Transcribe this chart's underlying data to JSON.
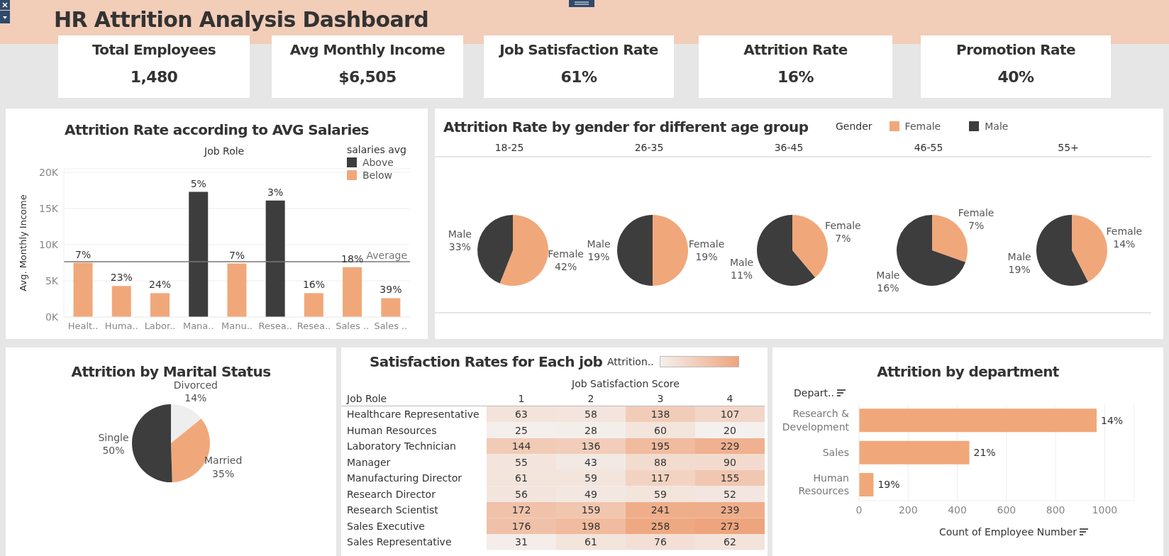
{
  "chart_data": [
    {
      "type": "other",
      "title": "HR Attrition Analysis Dashboard",
      "annotations": [
        "Total Employees",
        "1,480",
        "Avg Monthly Income",
        "$6,505",
        "Job Satisfaction Rate",
        "61%",
        "Attrition Rate",
        "16%",
        "Promotion Rate",
        "40%"
      ]
    },
    {
      "type": "bar",
      "title": "Attrition Rate according to AVG Salaries",
      "xlabel": "Job Role",
      "ylabel": "Avg. Monthly Income",
      "legend_title": "salaries avg",
      "legend": "top right",
      "stacked": true,
      "grid": "y",
      "categories": [
        "Healt..",
        "Huma..",
        "Labor..",
        "Mana..",
        "Manu..",
        "Resea..",
        "Resea..",
        "Sales ..",
        "Sales .."
      ],
      "series": [
        {
          "name": "Above",
          "color": "#3d3d3d",
          "values": [
            null,
            null,
            null,
            17300,
            null,
            16100,
            null,
            null,
            null
          ]
        },
        {
          "name": "Below",
          "color": "#f0a87a",
          "values": [
            7500,
            4300,
            3300,
            null,
            7400,
            null,
            3300,
            6900,
            2600
          ]
        }
      ],
      "annotations": [
        {
          "text": "7%",
          "y": 7500
        },
        {
          "text": "23%",
          "y": 4300
        },
        {
          "text": "24%",
          "y": 3300
        },
        {
          "text": "5%",
          "y": 17300
        },
        {
          "text": "7%",
          "y": 7400
        },
        {
          "text": "3%",
          "y": 16100
        },
        {
          "text": "16%",
          "y": 3300
        },
        {
          "text": "18%",
          "y": 6900
        },
        {
          "text": "39%",
          "y": 2600
        }
      ],
      "ylim": [
        0,
        20500
      ],
      "yticks": [
        {
          "value": 0,
          "label": "0K"
        },
        {
          "value": 5000,
          "label": "5K"
        },
        {
          "value": 10000,
          "label": "10K"
        },
        {
          "value": 15000,
          "label": "15K"
        },
        {
          "value": 20000,
          "label": "20K"
        }
      ],
      "ref_lines": [
        {
          "axis": "y",
          "value": 7650,
          "label": "Average",
          "color": "#777777"
        }
      ]
    },
    {
      "type": "pie",
      "title": "Attrition Rate by gender for different age group",
      "legend_title": "Gender",
      "legend": "top right",
      "categories": [
        "Female",
        "Male"
      ],
      "colors": [
        "#f0a87a",
        "#3d3d3d"
      ],
      "series": [
        {
          "name": "18-25",
          "values": [
            42,
            33
          ],
          "value_labels": [
            "42%",
            "33%"
          ]
        },
        {
          "name": "26-35",
          "values": [
            19,
            19
          ],
          "value_labels": [
            "19%",
            "19%"
          ]
        },
        {
          "name": "36-45",
          "values": [
            7,
            11
          ],
          "value_labels": [
            "7%",
            "11%"
          ]
        },
        {
          "name": "46-55",
          "values": [
            7,
            16
          ],
          "value_labels": [
            "7%",
            "16%"
          ]
        },
        {
          "name": "55+",
          "values": [
            14,
            19
          ],
          "value_labels": [
            "14%",
            "19%"
          ]
        }
      ]
    },
    {
      "type": "pie",
      "title": "Attrition by Marital Status",
      "categories": [
        "Divorced",
        "Married",
        "Single"
      ],
      "values": [
        14,
        35,
        50
      ],
      "value_labels": [
        "14%",
        "35%",
        "50%"
      ],
      "colors": [
        "#eeeeee",
        "#f0a87a",
        "#3d3d3d"
      ]
    },
    {
      "type": "heatmap",
      "data_labels": true,
      "title": "Satisfaction Rates for Each job",
      "xlabel": "Job Satisfaction Score",
      "ylabel": "Job Role",
      "clabel": "Attrition..",
      "colors": [
        "#f4f0ee",
        "#eea47c"
      ],
      "categories": [
        "1",
        "2",
        "3",
        "4"
      ],
      "y_categories": [
        "Healthcare Representative",
        "Human Resources",
        "Laboratory Technician",
        "Manager",
        "Manufacturing Director",
        "Research Director",
        "Research Scientist",
        "Sales Executive",
        "Sales Representative"
      ],
      "cells": [
        [
          63,
          58,
          138,
          107
        ],
        [
          25,
          28,
          60,
          20
        ],
        [
          144,
          136,
          195,
          229
        ],
        [
          55,
          43,
          88,
          90
        ],
        [
          61,
          59,
          117,
          155
        ],
        [
          56,
          49,
          59,
          52
        ],
        [
          172,
          159,
          241,
          239
        ],
        [
          176,
          198,
          258,
          273
        ],
        [
          31,
          61,
          76,
          62
        ]
      ]
    },
    {
      "type": "bar",
      "orientation": "horizontal",
      "title": "Attrition by department",
      "xlabel": "Count of Employee Number",
      "ylabel": "Depart..",
      "grid": "x",
      "color": "#f0a87a",
      "categories": [
        "Research & Development",
        "Sales",
        "Human Resources"
      ],
      "values": [
        967,
        449,
        59
      ],
      "annotations": [
        {
          "text": "14%",
          "x": 967,
          "y": "Research & Development"
        },
        {
          "text": "21%",
          "x": 449,
          "y": "Sales"
        },
        {
          "text": "19%",
          "x": 59,
          "y": "Human Resources"
        }
      ],
      "xlim": [
        0,
        1120
      ],
      "xticks": [
        0,
        200,
        400,
        600,
        800,
        1000
      ]
    }
  ]
}
